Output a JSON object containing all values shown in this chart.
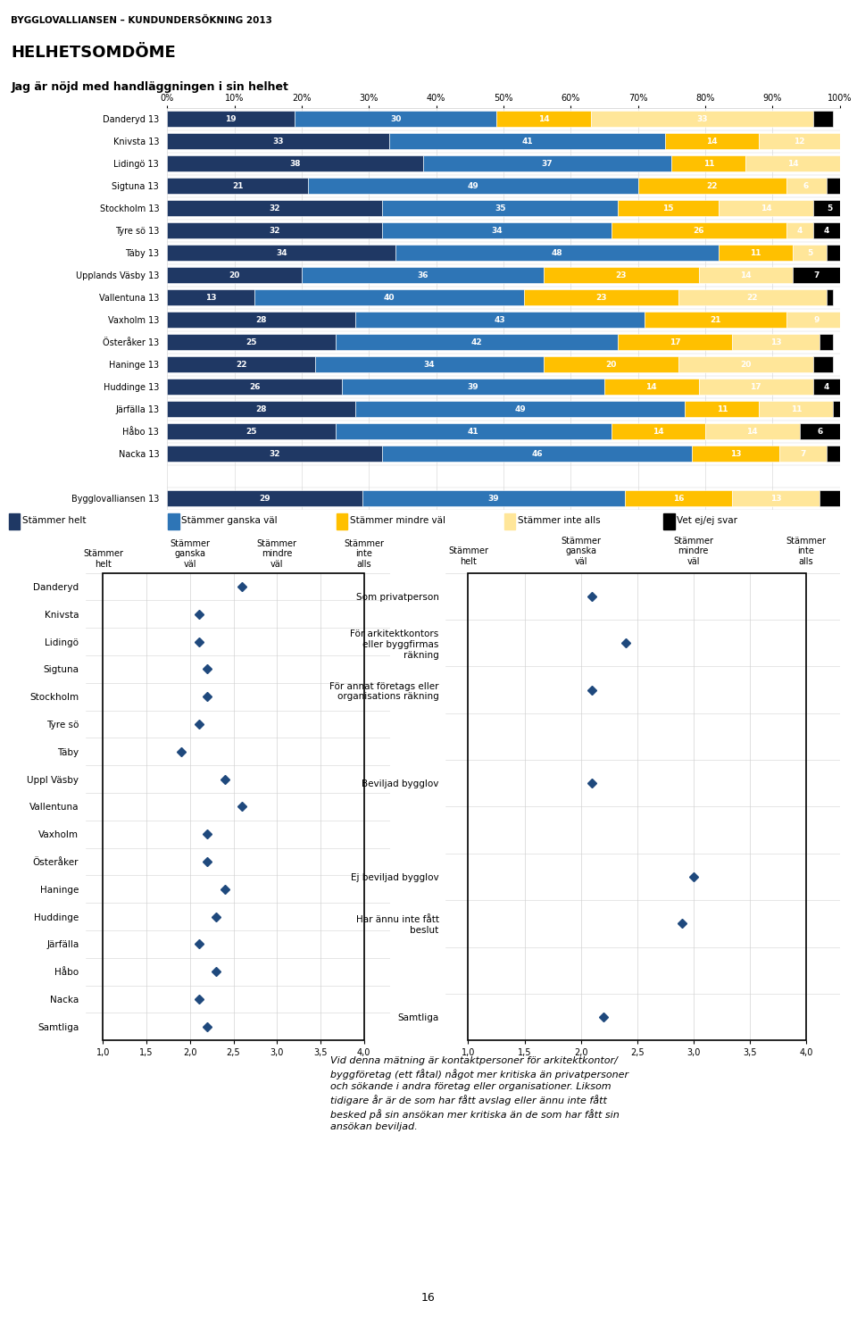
{
  "title_top": "BYGGLOVALLIANSEN – KUNDUNDERSÖKNING 2013",
  "section_title": "HELHETSOM DÖME",
  "question": "Jag är nöjd med handläggningen i sin helhet",
  "categories_with_gap": [
    "Danderyd 13",
    "Knivsta 13",
    "Lidingö 13",
    "Sigtuna 13",
    "Stockholm 13",
    "Tyre sö 13",
    "Täby 13",
    "Upplands Väsby 13",
    "Vallentuna 13",
    "Vaxholm 13",
    "Österåker 13",
    "Haninge 13",
    "Huddinge 13",
    "Järfälla 13",
    "Håbo 13",
    "Nacka 13",
    null,
    "Bygglovalliansen 13"
  ],
  "bar_data": {
    "Danderyd 13": [
      19,
      30,
      14,
      33,
      3
    ],
    "Knivsta 13": [
      33,
      41,
      14,
      12,
      0
    ],
    "Lidingö 13": [
      38,
      37,
      11,
      14,
      0
    ],
    "Sigtuna 13": [
      21,
      49,
      22,
      6,
      2
    ],
    "Stockholm 13": [
      32,
      35,
      15,
      14,
      5
    ],
    "Tyre sö 13": [
      32,
      34,
      26,
      4,
      4
    ],
    "Täby 13": [
      34,
      48,
      11,
      5,
      2
    ],
    "Upplands Väsby 13": [
      20,
      36,
      23,
      14,
      7
    ],
    "Vallentuna 13": [
      13,
      40,
      23,
      22,
      1
    ],
    "Vaxholm 13": [
      28,
      43,
      21,
      9,
      0
    ],
    "Österåker 13": [
      25,
      42,
      17,
      13,
      2
    ],
    "Haninge 13": [
      22,
      34,
      20,
      20,
      3
    ],
    "Huddinge 13": [
      26,
      39,
      14,
      17,
      4
    ],
    "Järfälla 13": [
      28,
      49,
      11,
      11,
      2
    ],
    "Håbo 13": [
      25,
      41,
      14,
      14,
      6
    ],
    "Nacka 13": [
      32,
      46,
      13,
      7,
      2
    ],
    "Bygglovalliansen 13": [
      29,
      39,
      16,
      13,
      3
    ]
  },
  "bar_colors": [
    "#1f3864",
    "#2e75b6",
    "#ffc000",
    "#ffe699",
    "#000000"
  ],
  "legend_labels": [
    "Stämmer helt",
    "Stämmer ganska väl",
    "Stämmer mindre väl",
    "Stämmer inte alls",
    "Vet ej/ej svar"
  ],
  "left_scatter_rows": [
    "Danderyd",
    "Knivsta",
    "Lidingö",
    "Sigtuna",
    "Stockholm",
    "Tyre sö",
    "Täby",
    "Uppl Väsby",
    "Vallentuna",
    "Vaxholm",
    "Österåker",
    "Haninge",
    "Huddinge",
    "Järfälla",
    "Håbo",
    "Nacka",
    "Samtliga"
  ],
  "left_scatter_vals": [
    2.6,
    2.1,
    2.1,
    2.2,
    2.2,
    2.1,
    1.9,
    2.4,
    2.6,
    2.2,
    2.2,
    2.4,
    2.3,
    2.1,
    2.3,
    2.1,
    2.2
  ],
  "right_scatter_rows": [
    "Som privatperson",
    "För arkitektkontors\neller byggfirmas\nräkning",
    "För annat företags eller\norganisations räkning",
    "",
    "Beviljad bygglov",
    "",
    "Ej beviljad bygglov",
    "Har ännu inte fått\nbeslut",
    "",
    "Samtliga"
  ],
  "right_scatter_vals": [
    2.1,
    2.4,
    2.1,
    null,
    2.1,
    null,
    3.0,
    2.9,
    null,
    2.2
  ],
  "scatter_color": "#1f497d",
  "body_text_line1": "Vid denna mätning är kontaktpersoner för arkitektkontor/",
  "body_text_line2": "byggföretag (ett fåtal) något mer kritiska än privatpersoner",
  "body_text_line3": "och sökande i andra företag eller organisationer. Liksom",
  "body_text_line4": "tidigare år är de som har fått avslag eller ännu inte fått",
  "body_text_line5": "besked på sin ansökan mer kritiska än de som har fått sin",
  "body_text_line6": "ansökan beviljad."
}
